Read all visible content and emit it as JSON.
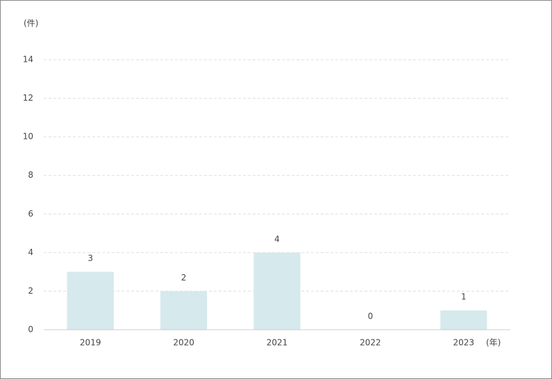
{
  "chart_data": {
    "type": "bar",
    "y_unit": "(件)",
    "x_unit": "(年)",
    "categories": [
      "2019",
      "2020",
      "2021",
      "2022",
      "2023"
    ],
    "values": [
      3,
      2,
      4,
      0,
      1
    ],
    "color": "#d6e9ec",
    "ylim": [
      0,
      14
    ],
    "yticks": [
      0,
      2,
      4,
      6,
      8,
      10,
      12,
      14
    ],
    "grid": true
  }
}
